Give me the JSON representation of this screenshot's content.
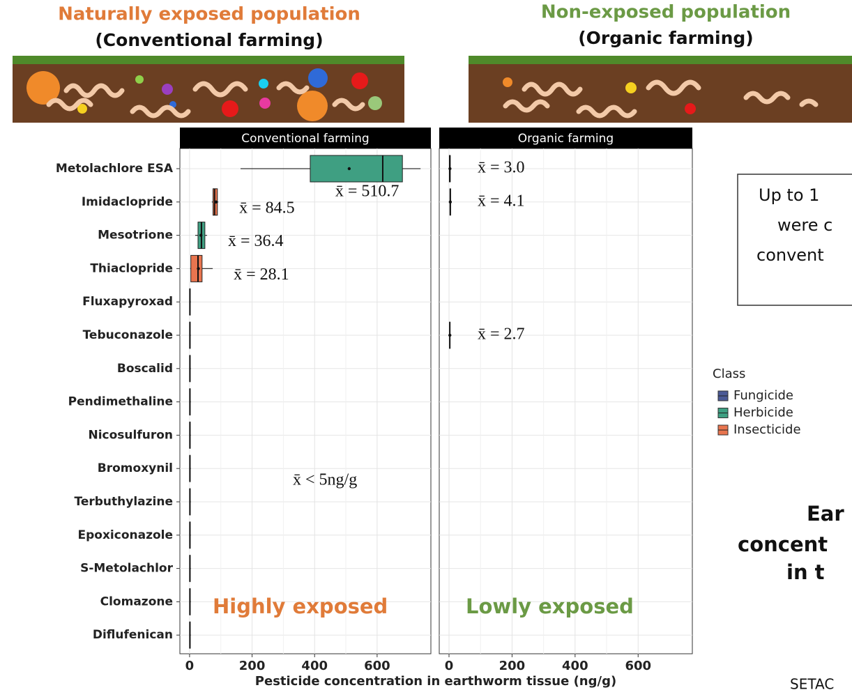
{
  "headings": [
    {
      "title": "Naturally exposed population",
      "subtitle": "(Conventional farming)"
    },
    {
      "title": "Non-exposed population",
      "subtitle": "(Organic farming)"
    }
  ],
  "side_box": [
    "Up to 1",
    "were c",
    "convent"
  ],
  "side_title": [
    "Ear",
    "concent",
    "in t"
  ],
  "footer": "SETAC",
  "chart_data": {
    "type": "boxplot",
    "categories": [
      "Metolachlore ESA",
      "Imidaclopride",
      "Mesotrione",
      "Thiaclopride",
      "Fluxapyroxad",
      "Tebuconazole",
      "Boscalid",
      "Pendimethaline",
      "Nicosulfuron",
      "Bromoxynil",
      "Terbuthylazine",
      "Epoxiconazole",
      "S-Metolachlor",
      "Clomazone",
      "Diflufenican"
    ],
    "category_class": [
      "Herbicide",
      "Insecticide",
      "Herbicide",
      "Insecticide",
      "Fungicide",
      "Fungicide",
      "Fungicide",
      "Herbicide",
      "Herbicide",
      "Herbicide",
      "Herbicide",
      "Fungicide",
      "Herbicide",
      "Herbicide",
      "Herbicide"
    ],
    "legend": {
      "title": "Class",
      "series": [
        {
          "name": "Fungicide",
          "color": "#4b5a96"
        },
        {
          "name": "Herbicide",
          "color": "#3f9f82"
        },
        {
          "name": "Insecticide",
          "color": "#e8754f"
        }
      ]
    },
    "facets": [
      {
        "title": "Conventional farming",
        "min": [
          163,
          71,
          18,
          2,
          0,
          0,
          0,
          0,
          0,
          0,
          0,
          0,
          0,
          0,
          0
        ],
        "q1": [
          386,
          75,
          27,
          4,
          0.5,
          0.5,
          0.5,
          0.5,
          0.5,
          0.5,
          0.5,
          0.5,
          0.5,
          0.5,
          0.5
        ],
        "median": [
          618,
          80,
          38,
          27,
          1,
          1,
          1,
          1,
          1,
          1,
          1,
          1,
          1,
          1,
          1
        ],
        "q3": [
          681,
          89,
          49,
          40,
          2,
          2,
          2,
          2,
          2,
          2,
          2,
          2,
          2,
          2,
          2
        ],
        "max": [
          739,
          92,
          56,
          74,
          4,
          4,
          4,
          4,
          4,
          4,
          4,
          4,
          4,
          4,
          4
        ],
        "mean": [
          510.7,
          84.5,
          36.4,
          28.1,
          null,
          null,
          null,
          null,
          null,
          null,
          null,
          null,
          null,
          null,
          null
        ],
        "mean_labels": [
          "x̄ = 510.7",
          "x̄ = 84.5",
          "x̄ = 36.4",
          "x̄ = 28.1",
          null,
          null,
          null,
          null,
          null,
          null,
          null,
          null,
          null,
          null,
          null
        ]
      },
      {
        "title": "Organic farming",
        "min": [
          0,
          2,
          1,
          null,
          null,
          null,
          null,
          null,
          null,
          null,
          null,
          null,
          null,
          null,
          null
        ],
        "q1": [
          1,
          3,
          2,
          null,
          null,
          null,
          null,
          null,
          null,
          null,
          null,
          null,
          null,
          null,
          null
        ],
        "median": [
          2.5,
          4,
          2.5,
          null,
          null,
          null,
          null,
          null,
          null,
          null,
          null,
          null,
          null,
          null,
          null
        ],
        "q3": [
          4,
          5,
          3,
          null,
          null,
          null,
          null,
          null,
          null,
          null,
          null,
          null,
          null,
          null,
          null
        ],
        "max": [
          6,
          7,
          5,
          null,
          null,
          null,
          null,
          null,
          null,
          null,
          null,
          null,
          null,
          null,
          null
        ],
        "mean": [
          3.0,
          4.1,
          2.7,
          null,
          null,
          null,
          null,
          null,
          null,
          null,
          null,
          null,
          null,
          null,
          null
        ],
        "mean_labels": [
          "x̄ = 3.0",
          "x̄ = 4.1",
          "x̄ = 2.7",
          null,
          null,
          null,
          null,
          null,
          null,
          null,
          null,
          null,
          null,
          null,
          null
        ],
        "rows": [
          0,
          1,
          5,
          null,
          null,
          null,
          null,
          null,
          null,
          null,
          null,
          null,
          null,
          null,
          null
        ]
      }
    ],
    "xlim": [
      -31,
      772
    ],
    "xticks": [
      0,
      200,
      400,
      600
    ],
    "xlabel": "Pesticide concentration in earthworm tissue (ng/g)",
    "grid": true,
    "annotations": {
      "brace": "x̄ < 5ng/g",
      "left": "Highly exposed",
      "right": "Lowly exposed"
    }
  }
}
